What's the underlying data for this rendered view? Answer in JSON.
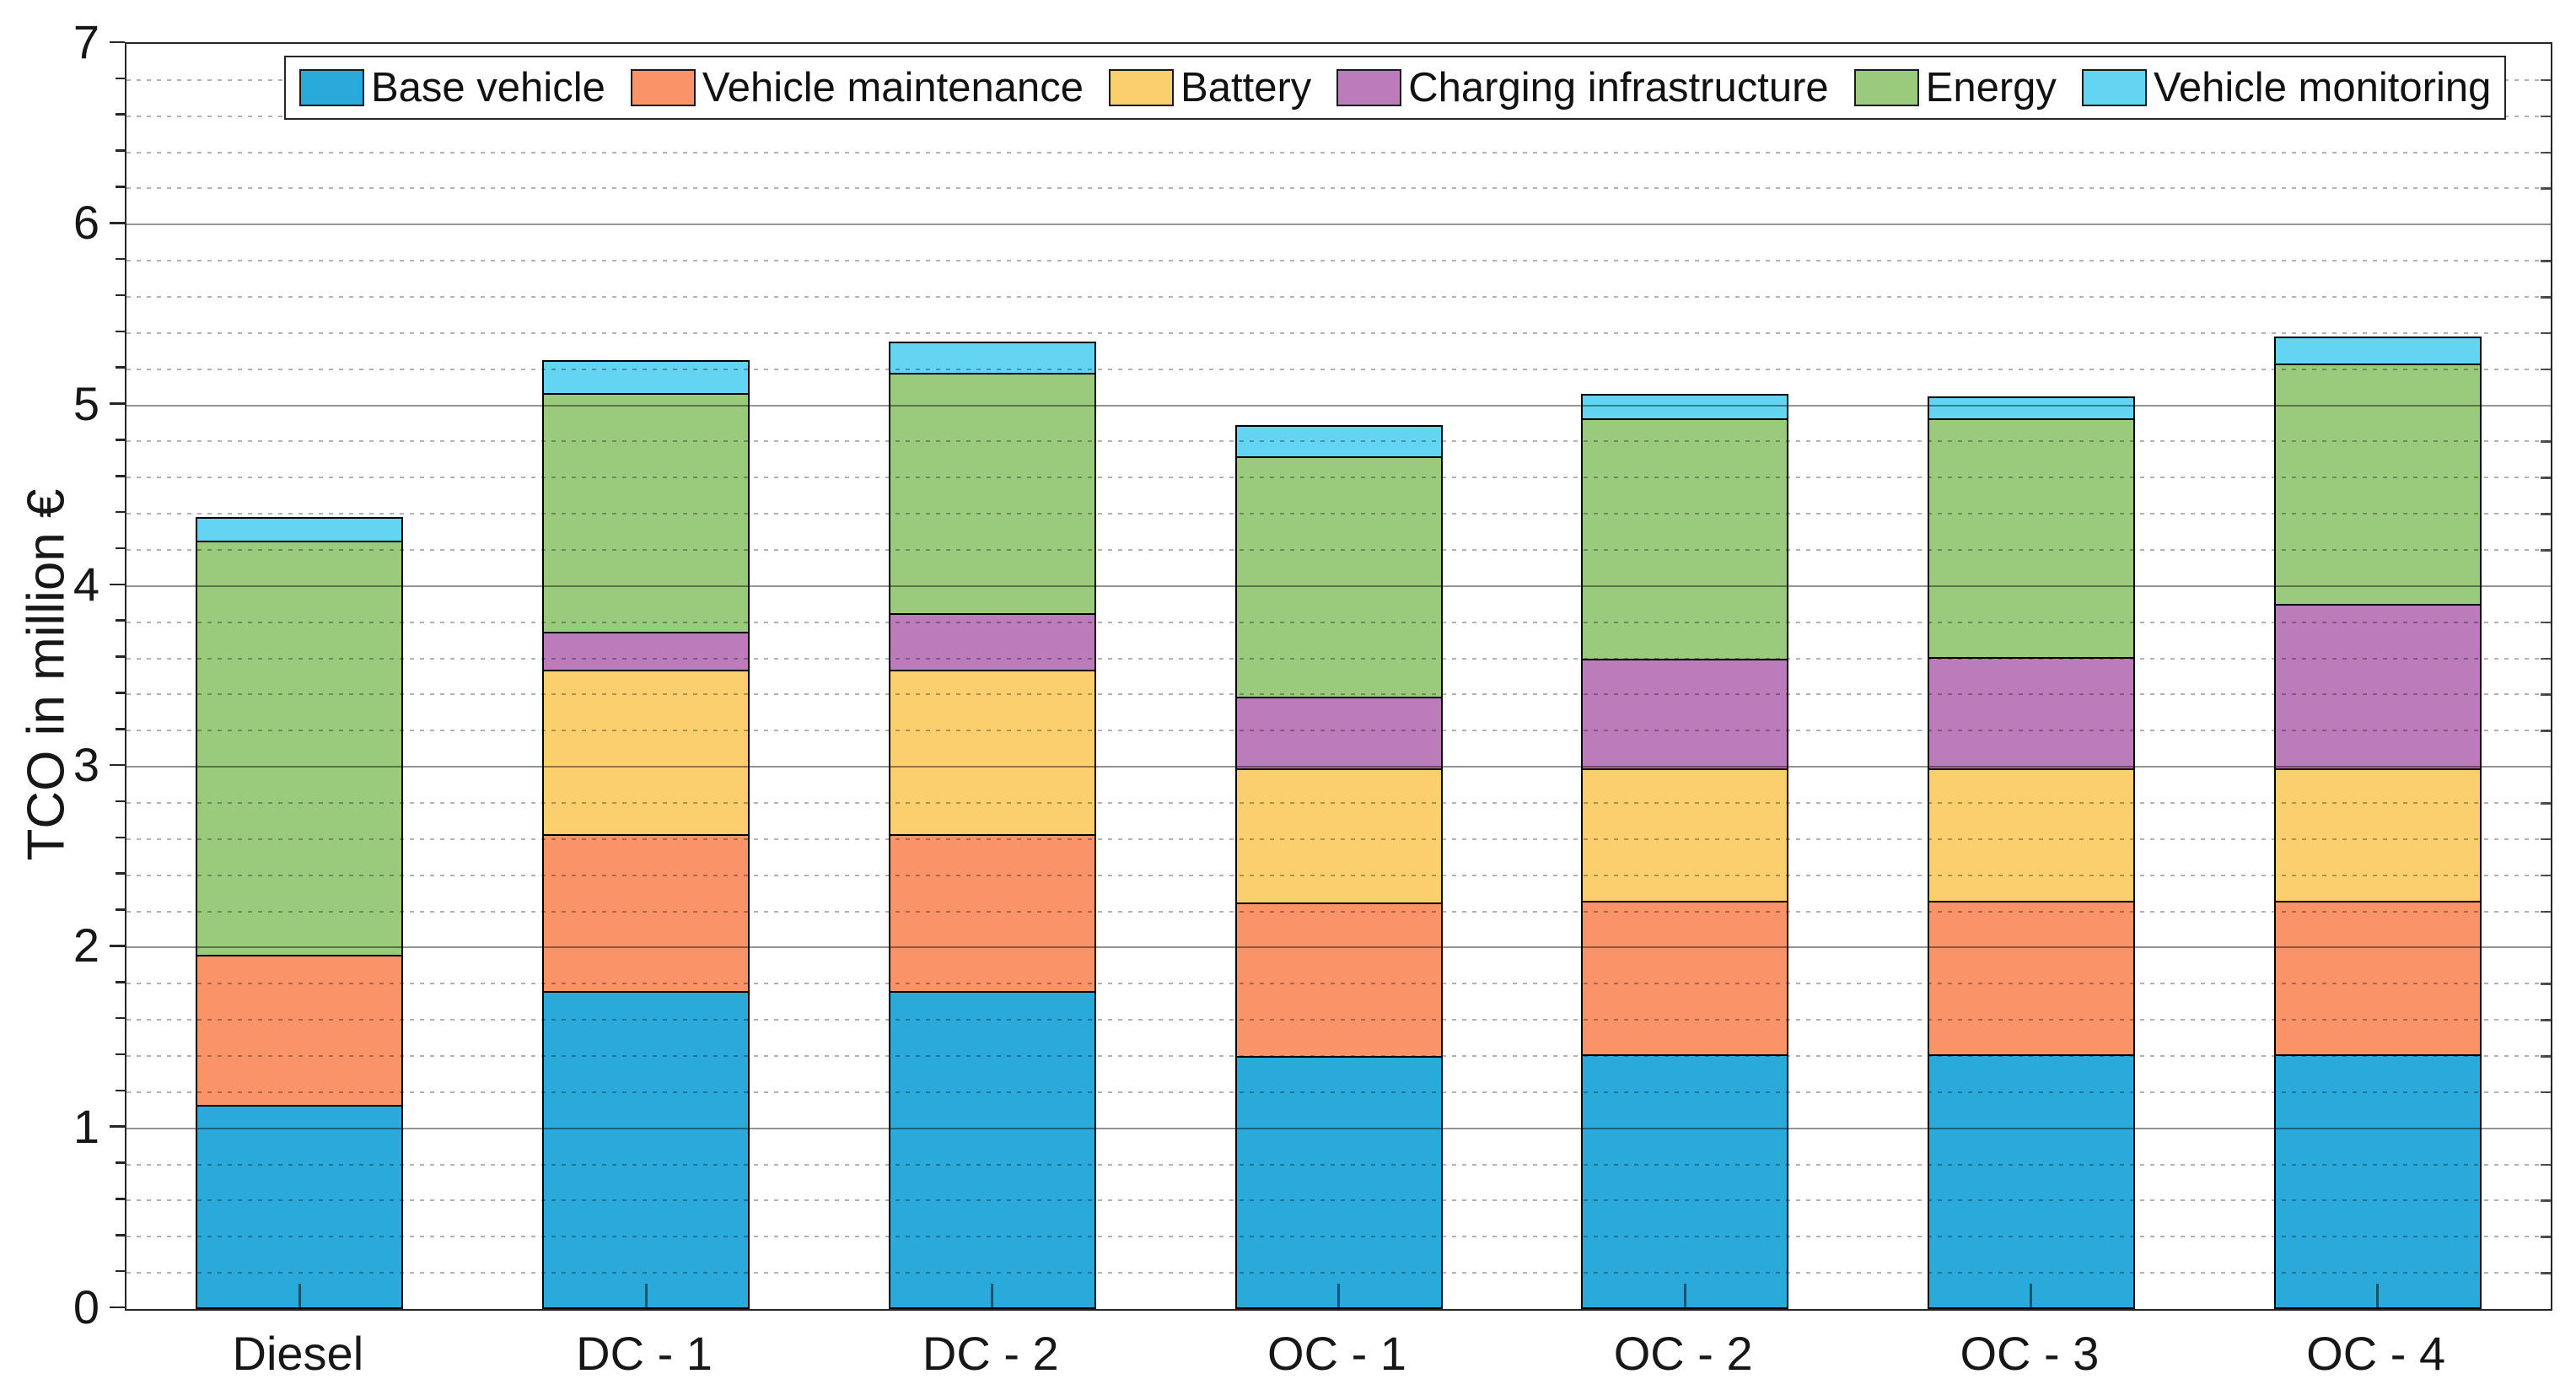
{
  "figure": {
    "background": "#ffffff",
    "axis_color": "#262626"
  },
  "y_axis": {
    "title": "TCO in million €",
    "tick_labels": [
      "0",
      "1",
      "2",
      "3",
      "4",
      "5",
      "6",
      "7"
    ],
    "min": 0,
    "max": 7,
    "major_step": 1,
    "minor_step": 0.2
  },
  "x_axis": {
    "categories": [
      "Diesel",
      "DC - 1",
      "DC - 2",
      "OC - 1",
      "OC - 2",
      "OC - 3",
      "OC - 4"
    ]
  },
  "chart_data": {
    "type": "bar",
    "stacked": true,
    "title": "",
    "xlabel": "",
    "ylabel": "TCO in million €",
    "ylim": [
      0,
      7
    ],
    "grid": {
      "major": "solid every 1.0",
      "minor": "dotted every 0.2"
    },
    "legend_position": "top-inside",
    "categories": [
      "Diesel",
      "DC - 1",
      "DC - 2",
      "OC - 1",
      "OC - 2",
      "OC - 3",
      "OC - 4"
    ],
    "series": [
      {
        "name": "Base vehicle",
        "color": "#2AA9DB",
        "values": [
          1.12,
          1.75,
          1.75,
          1.39,
          1.4,
          1.4,
          1.4
        ]
      },
      {
        "name": "Vehicle maintenance",
        "color": "#FA9468",
        "values": [
          0.83,
          0.87,
          0.87,
          0.85,
          0.85,
          0.85,
          0.85
        ]
      },
      {
        "name": "Battery",
        "color": "#FBCE6E",
        "values": [
          0.0,
          0.91,
          0.91,
          0.74,
          0.73,
          0.73,
          0.73
        ]
      },
      {
        "name": "Charging infrastructure",
        "color": "#BC7CBC",
        "values": [
          0.0,
          0.21,
          0.31,
          0.4,
          0.61,
          0.62,
          0.91
        ]
      },
      {
        "name": "Energy",
        "color": "#9ACA7C",
        "values": [
          2.29,
          1.32,
          1.33,
          1.33,
          1.33,
          1.32,
          1.33
        ]
      },
      {
        "name": "Vehicle monitoring",
        "color": "#63D5F2",
        "values": [
          0.13,
          0.18,
          0.17,
          0.17,
          0.13,
          0.12,
          0.15
        ]
      }
    ],
    "totals": [
      4.37,
      5.24,
      5.34,
      4.88,
      5.05,
      5.04,
      5.37
    ]
  }
}
